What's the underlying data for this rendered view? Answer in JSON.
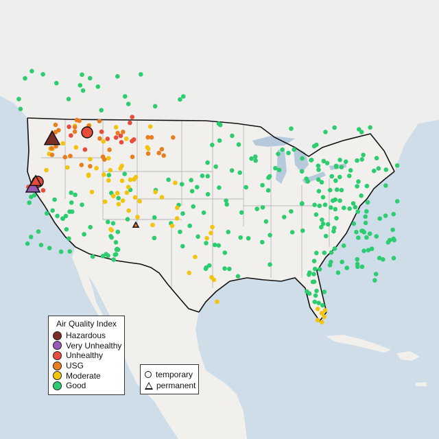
{
  "map": {
    "palette": {
      "ocean": "#cfdde9",
      "land": "#f1f0ec",
      "canada": "#eeeeec",
      "mexico": "#efeeea",
      "lakes": "#b7cadb",
      "state_line": "#a7a7a7",
      "country_line": "#111111"
    },
    "legend": {
      "title": "Air Quality Index",
      "categories": [
        {
          "label": "Hazardous",
          "color": "#7b2d26"
        },
        {
          "label": "Very Unhealthy",
          "color": "#9b59b6"
        },
        {
          "label": "Unhealthy",
          "color": "#e74c3c"
        },
        {
          "label": "USG",
          "color": "#e67e22"
        },
        {
          "label": "Moderate",
          "color": "#f1c40f"
        },
        {
          "label": "Good",
          "color": "#2ecc71"
        }
      ]
    },
    "type_legend": {
      "temporary": "temporary",
      "permanent": "permanent"
    }
  }
}
